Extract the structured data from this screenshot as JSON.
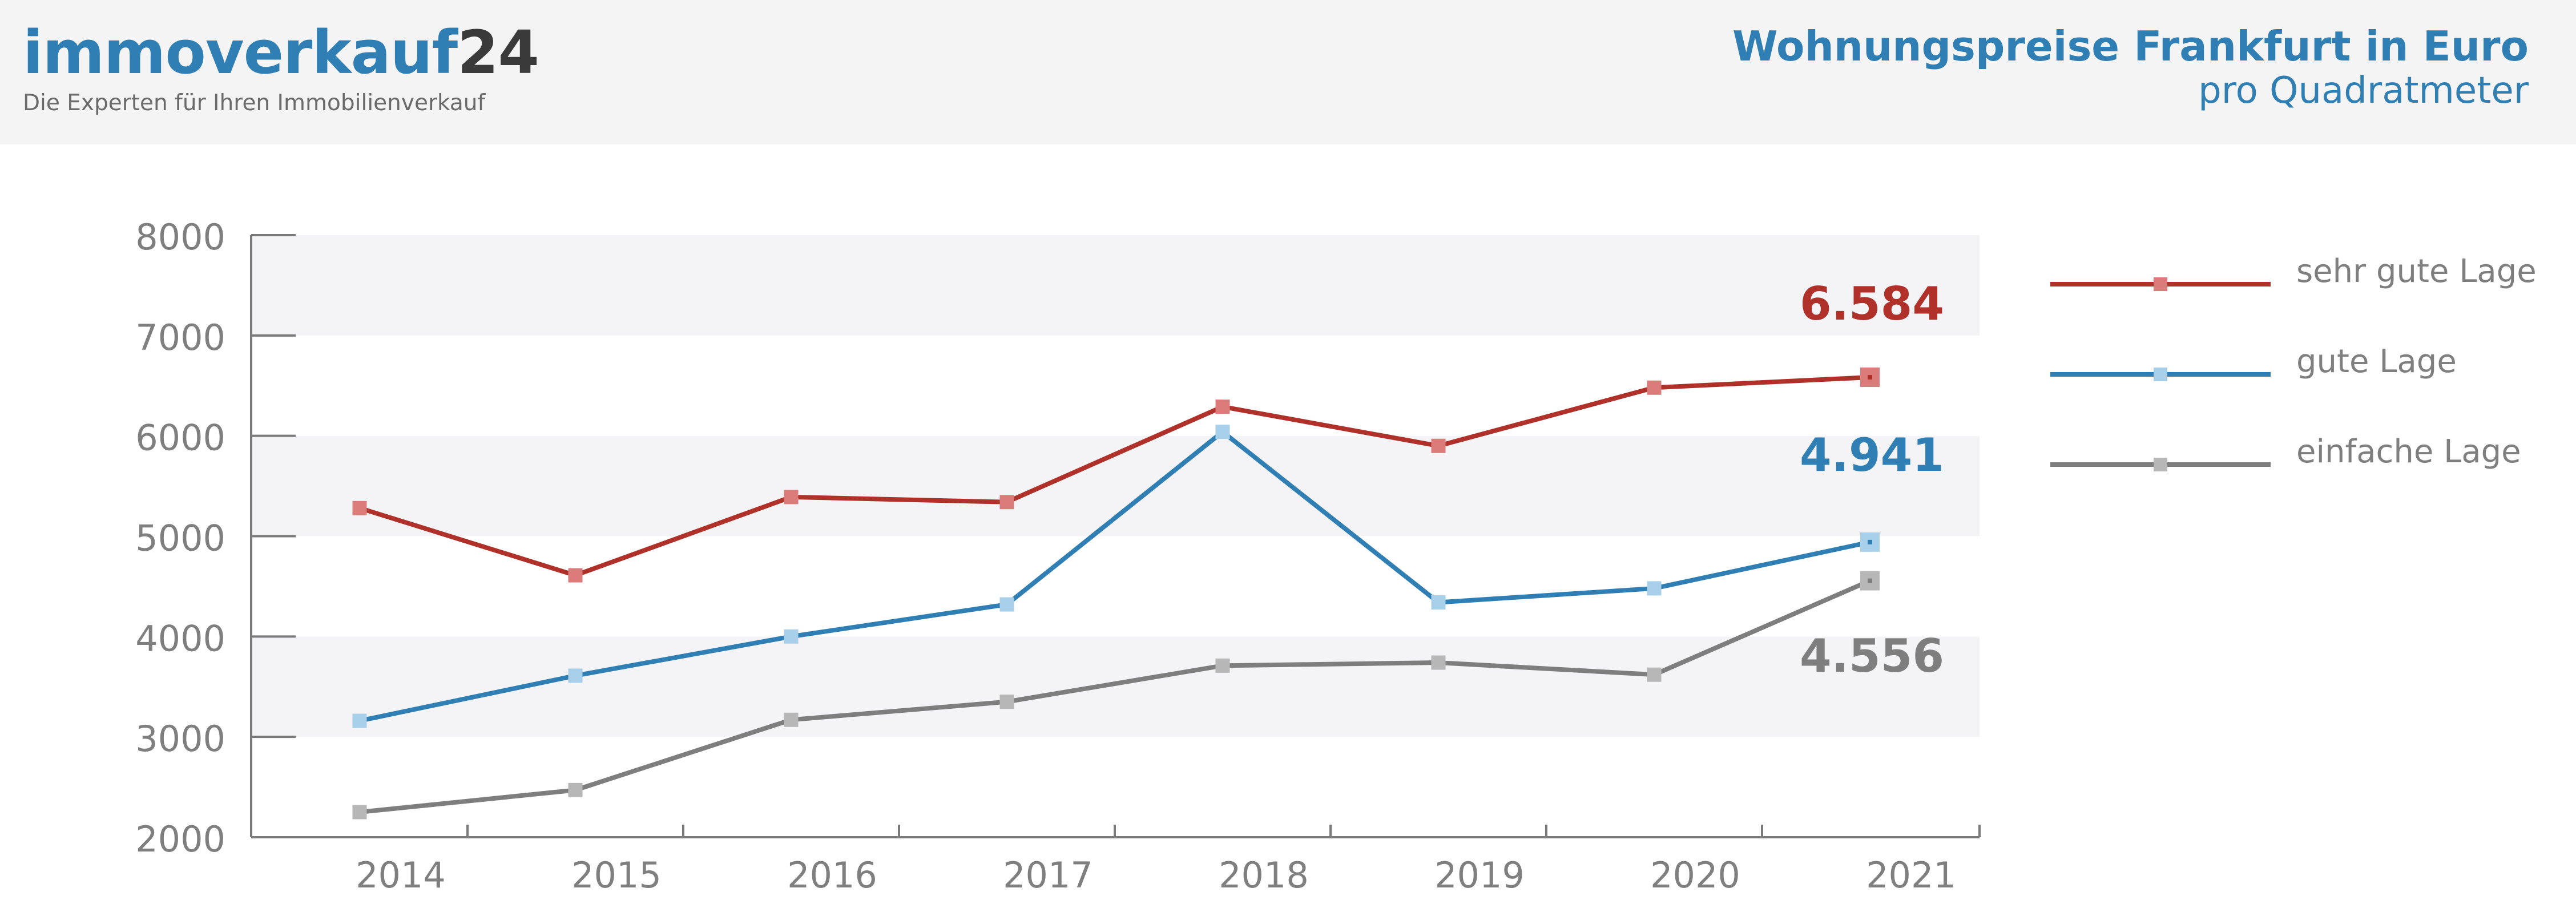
{
  "header": {
    "logo_name": "immoverkauf",
    "logo_number": "24",
    "tagline": "Die Experten für Ihren Immobilienverkauf",
    "title": "Wohnungspreise Frankfurt in Euro",
    "subtitle": "pro Quadratmeter"
  },
  "colors": {
    "header_bg": "#f4f4f5",
    "brand_blue": "#2f7fb5",
    "band": "#f4f4f6",
    "axis": "#7a7a7a",
    "tick_text": "#7f7f7f"
  },
  "chart_data": {
    "type": "line",
    "title": "Wohnungspreise Frankfurt in Euro",
    "subtitle": "pro Quadratmeter",
    "xlabel": "",
    "ylabel": "",
    "categories": [
      "2014",
      "2015",
      "2016",
      "2017",
      "2018",
      "2019",
      "2020",
      "2021"
    ],
    "ylim": [
      2000,
      8000
    ],
    "yticks": [
      "2000",
      "3000",
      "4000",
      "5000",
      "6000",
      "7000",
      "8000"
    ],
    "legend_position": "right",
    "series": [
      {
        "name": "sehr gute Lage",
        "values": [
          5280,
          4610,
          5390,
          5340,
          6290,
          5900,
          6480,
          6584
        ],
        "end_label": "6.584",
        "color": "#b0302a",
        "marker_color": "#dc7c7a"
      },
      {
        "name": "gute Lage",
        "values": [
          3160,
          3610,
          4000,
          4320,
          6040,
          4340,
          4480,
          4941
        ],
        "end_label": "4.941",
        "color": "#2f7fb5",
        "marker_color": "#a9d0ea"
      },
      {
        "name": "einfache Lage",
        "values": [
          2250,
          2470,
          3170,
          3350,
          3710,
          3740,
          3620,
          4556
        ],
        "end_label": "4.556",
        "color": "#7e7e7e",
        "marker_color": "#b7b7b7"
      }
    ]
  }
}
